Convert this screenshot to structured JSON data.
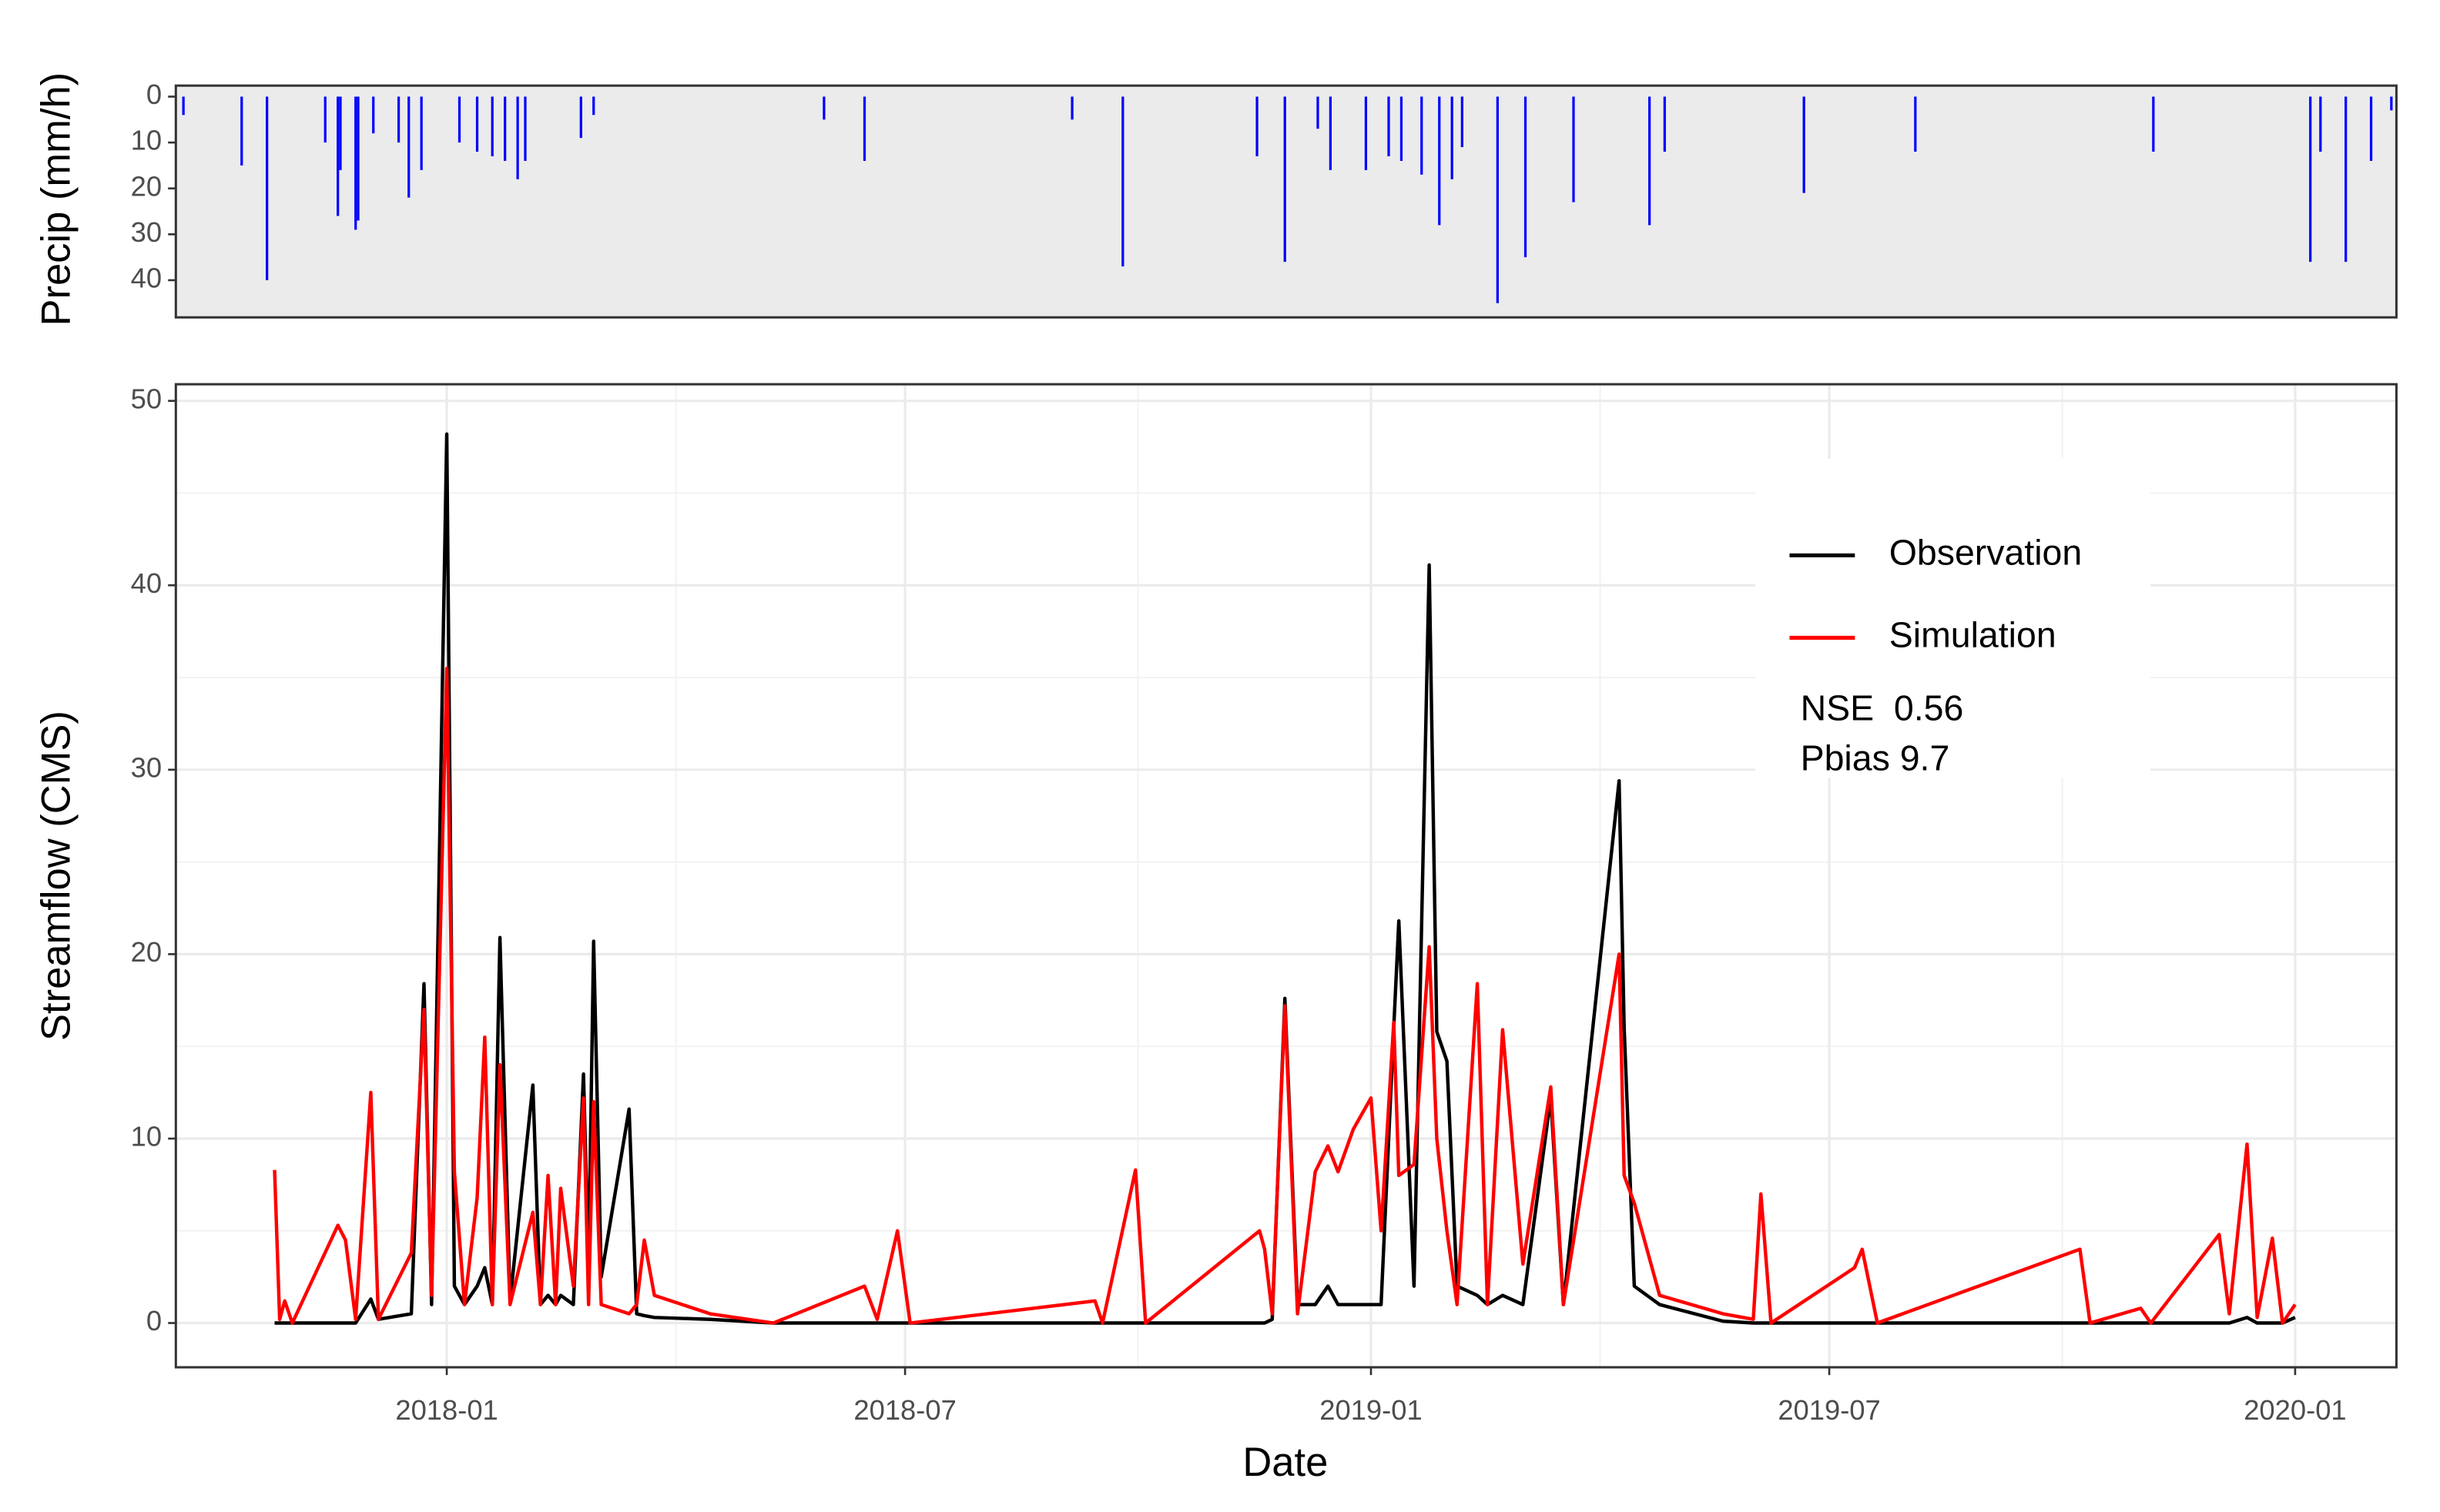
{
  "chart_data": [
    {
      "type": "bar",
      "ylabel": "Precip (mm/h)",
      "color": "#0000ff",
      "background": "#ebebeb",
      "y_reverse": true,
      "ylim": [
        -2.4,
        48.1
      ],
      "yticks": [
        0,
        10,
        20,
        30,
        40
      ],
      "xlim": [
        "2017-09-16",
        "2020-02-10"
      ],
      "x": [
        "2017-09-19",
        "2017-10-12",
        "2017-10-22",
        "2017-11-14",
        "2017-11-19",
        "2017-11-20",
        "2017-11-26",
        "2017-11-27",
        "2017-12-03",
        "2017-12-13",
        "2017-12-17",
        "2017-12-22",
        "2018-01-06",
        "2018-01-13",
        "2018-01-19",
        "2018-01-24",
        "2018-01-29",
        "2018-02-01",
        "2018-02-23",
        "2018-02-28",
        "2018-05-30",
        "2018-06-15",
        "2018-09-05",
        "2018-09-25",
        "2018-11-17",
        "2018-11-28",
        "2018-12-11",
        "2018-12-16",
        "2018-12-30",
        "2019-01-08",
        "2019-01-13",
        "2019-01-21",
        "2019-01-28",
        "2019-02-02",
        "2019-02-06",
        "2019-02-20",
        "2019-03-03",
        "2019-03-22",
        "2019-04-21",
        "2019-04-27",
        "2019-06-21",
        "2019-08-04",
        "2019-11-06",
        "2020-01-07",
        "2020-01-11",
        "2020-01-21",
        "2020-01-31",
        "2020-02-08"
      ],
      "values": [
        4,
        15,
        40,
        10,
        26,
        16,
        29,
        27,
        8,
        10,
        22,
        16,
        10,
        12,
        13,
        14,
        18,
        14,
        9,
        4,
        5,
        14,
        5,
        37,
        13,
        36,
        7,
        16,
        16,
        13,
        14,
        17,
        28,
        18,
        11,
        45,
        35,
        23,
        28,
        12,
        21,
        12,
        12,
        36,
        12,
        36,
        14,
        3
      ]
    },
    {
      "type": "line",
      "ylabel": "Streamflow (CMS)",
      "xlabel": "Date",
      "grid": true,
      "legend": "inside-top-right",
      "annotations": [
        "NSE  0.56",
        "Pbias 9.7"
      ],
      "xlim": [
        "2017-09-16",
        "2020-02-10"
      ],
      "xticks": [
        {
          "value": "2018-01-01",
          "label": "2018-01"
        },
        {
          "value": "2018-07-01",
          "label": "2018-07"
        },
        {
          "value": "2019-01-01",
          "label": "2019-01"
        },
        {
          "value": "2019-07-01",
          "label": "2019-07"
        },
        {
          "value": "2020-01-01",
          "label": "2020-01"
        }
      ],
      "ylim": [
        -2.4,
        50.9
      ],
      "yticks": [
        0,
        10,
        20,
        30,
        40,
        50
      ],
      "x": [
        "2017-10-25",
        "2017-10-27",
        "2017-10-29",
        "2017-11-01",
        "2017-11-19",
        "2017-11-22",
        "2017-11-26",
        "2017-12-02",
        "2017-12-05",
        "2017-12-18",
        "2017-12-23",
        "2017-12-26",
        "2018-01-01",
        "2018-01-04",
        "2018-01-08",
        "2018-01-13",
        "2018-01-16",
        "2018-01-19",
        "2018-01-22",
        "2018-01-26",
        "2018-02-04",
        "2018-02-07",
        "2018-02-10",
        "2018-02-13",
        "2018-02-15",
        "2018-02-20",
        "2018-02-24",
        "2018-02-26",
        "2018-02-28",
        "2018-03-03",
        "2018-03-14",
        "2018-03-17",
        "2018-03-20",
        "2018-03-24",
        "2018-04-15",
        "2018-05-10",
        "2018-06-15",
        "2018-06-20",
        "2018-06-28",
        "2018-07-03",
        "2018-09-14",
        "2018-09-17",
        "2018-09-30",
        "2018-10-04",
        "2018-11-18",
        "2018-11-20",
        "2018-11-23",
        "2018-11-28",
        "2018-12-03",
        "2018-12-10",
        "2018-12-15",
        "2018-12-19",
        "2018-12-25",
        "2019-01-01",
        "2019-01-05",
        "2019-01-10",
        "2019-01-12",
        "2019-01-18",
        "2019-01-24",
        "2019-01-27",
        "2019-01-31",
        "2019-02-04",
        "2019-02-12",
        "2019-02-16",
        "2019-02-22",
        "2019-03-02",
        "2019-03-13",
        "2019-03-18",
        "2019-04-09",
        "2019-04-11",
        "2019-04-15",
        "2019-04-25",
        "2019-05-20",
        "2019-06-01",
        "2019-06-04",
        "2019-06-08",
        "2019-07-11",
        "2019-07-14",
        "2019-07-20",
        "2019-10-08",
        "2019-10-12",
        "2019-11-01",
        "2019-11-05",
        "2019-12-02",
        "2019-12-06",
        "2019-12-13",
        "2019-12-17",
        "2019-12-23",
        "2019-12-27",
        "2020-01-01"
      ],
      "series": [
        {
          "name": "Observation",
          "color": "#000000",
          "values": [
            0,
            0,
            0,
            0,
            0,
            0,
            0,
            1.3,
            0.2,
            0.5,
            18.4,
            1,
            48.2,
            2,
            1,
            2,
            3,
            1,
            20.9,
            1.2,
            12.9,
            1,
            1.5,
            1,
            1.5,
            1,
            13.5,
            3,
            20.7,
            2.5,
            11.6,
            0.5,
            0.4,
            0.3,
            0.2,
            0,
            0,
            0,
            0,
            0,
            0,
            0,
            0,
            0,
            0,
            0,
            0.2,
            17.6,
            1,
            1,
            2,
            1,
            1,
            1,
            1,
            16,
            21.8,
            2,
            41.1,
            15.8,
            14.2,
            2,
            1.5,
            1,
            1.5,
            1,
            12.2,
            1,
            29.4,
            16,
            2,
            1,
            0.1,
            0,
            0,
            0,
            0,
            0,
            0,
            0,
            0,
            0,
            0,
            0,
            0,
            0.3,
            0,
            0,
            0,
            0.3
          ]
        },
        {
          "name": "Simulation",
          "color": "#ff0000",
          "values": [
            8.3,
            0.2,
            1.2,
            0,
            5.3,
            4.5,
            0.2,
            12.5,
            0.2,
            3.8,
            17,
            1.5,
            35.5,
            8.2,
            1,
            6.8,
            15.5,
            1,
            14,
            1,
            6,
            1,
            8,
            1,
            7.3,
            2,
            12.2,
            1,
            12,
            1,
            0.5,
            1,
            4.5,
            1.5,
            0.5,
            0,
            2,
            0.2,
            5,
            0,
            1.2,
            0,
            8.3,
            0,
            5,
            4,
            0.5,
            17.2,
            0.5,
            8.2,
            9.6,
            8.2,
            10.5,
            12.2,
            5,
            16.3,
            8,
            8.6,
            20.4,
            10,
            5,
            1,
            18.4,
            1,
            15.9,
            3.2,
            12.8,
            1,
            20,
            8,
            6.5,
            1.5,
            0.5,
            0.2,
            7,
            0,
            3,
            4,
            0,
            4,
            0,
            0.8,
            0,
            4.8,
            0.5,
            9.7,
            0.3,
            4.6,
            0,
            1
          ]
        }
      ]
    }
  ]
}
